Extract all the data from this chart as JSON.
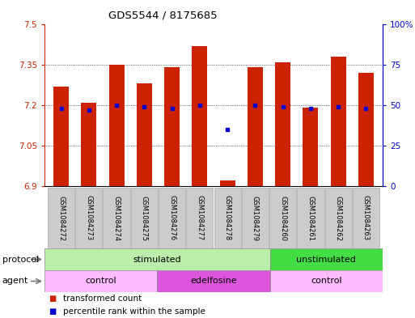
{
  "title": "GDS5544 / 8175685",
  "samples": [
    "GSM1084272",
    "GSM1084273",
    "GSM1084274",
    "GSM1084275",
    "GSM1084276",
    "GSM1084277",
    "GSM1084278",
    "GSM1084279",
    "GSM1084260",
    "GSM1084261",
    "GSM1084262",
    "GSM1084263"
  ],
  "bar_values": [
    7.27,
    7.21,
    7.35,
    7.28,
    7.34,
    7.42,
    6.92,
    7.34,
    7.36,
    7.19,
    7.38,
    7.32
  ],
  "percentile_values": [
    48,
    47,
    50,
    49,
    48,
    50,
    35,
    50,
    49,
    48,
    49,
    48
  ],
  "ylim": [
    6.9,
    7.5
  ],
  "yticks": [
    6.9,
    7.05,
    7.2,
    7.35,
    7.5
  ],
  "ytick_labels": [
    "6.9",
    "7.05",
    "7.2",
    "7.35",
    "7.5"
  ],
  "y2lim": [
    0,
    100
  ],
  "y2ticks": [
    0,
    25,
    50,
    75,
    100
  ],
  "y2tick_labels": [
    "0",
    "25",
    "50",
    "75",
    "100%"
  ],
  "bar_color": "#cc2200",
  "percentile_color": "#0000cc",
  "bar_width": 0.55,
  "protocol_groups": [
    {
      "label": "stimulated",
      "start": 0,
      "end": 7,
      "color": "#bbeeaa"
    },
    {
      "label": "unstimulated",
      "start": 8,
      "end": 11,
      "color": "#44dd44"
    }
  ],
  "agent_groups": [
    {
      "label": "control",
      "start": 0,
      "end": 3,
      "color": "#ffbbff"
    },
    {
      "label": "edelfosine",
      "start": 4,
      "end": 7,
      "color": "#dd55dd"
    },
    {
      "label": "control",
      "start": 8,
      "end": 11,
      "color": "#ffbbff"
    }
  ],
  "legend_bar_color": "#cc2200",
  "legend_percentile_color": "#0000cc",
  "legend_bar_label": "transformed count",
  "legend_percentile_label": "percentile rank within the sample",
  "protocol_label": "protocol",
  "agent_label": "agent",
  "left_axis_color": "#cc2200",
  "right_axis_color": "#0000cc",
  "background_color": "#ffffff",
  "plot_bg_color": "#ffffff",
  "grid_color": "#000000",
  "sample_box_color": "#cccccc",
  "sample_box_edge": "#aaaaaa"
}
